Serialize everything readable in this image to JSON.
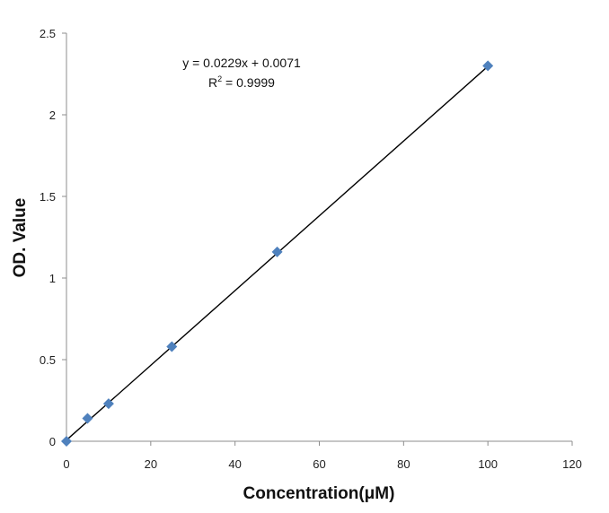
{
  "chart_data": {
    "type": "scatter",
    "title": "",
    "xlabel": "Concentration(μM)",
    "ylabel": "OD. Value",
    "xlim": [
      0,
      120
    ],
    "ylim": [
      0,
      2.5
    ],
    "xticks": [
      "0",
      "20",
      "40",
      "60",
      "80",
      "100",
      "120"
    ],
    "yticks": [
      "0",
      "0.5",
      "1",
      "1.5",
      "2",
      "2.5"
    ],
    "grid": false,
    "legend": "none",
    "series": [
      {
        "x": [
          0,
          5,
          10,
          25,
          50,
          100
        ],
        "y": [
          0.0,
          0.14,
          0.23,
          0.58,
          1.16,
          2.3
        ],
        "marker": "diamond",
        "color": "#4f81bd"
      }
    ],
    "trendline": {
      "type": "linear",
      "slope": 0.0229,
      "intercept": 0.0071,
      "x_range": [
        0,
        100
      ],
      "color": "#000000"
    },
    "annotations": {
      "equation": "y = 0.0229x + 0.0071",
      "r_squared_prefix": "R",
      "r_squared_sup": "2",
      "r_squared_value": " = 0.9999"
    }
  }
}
